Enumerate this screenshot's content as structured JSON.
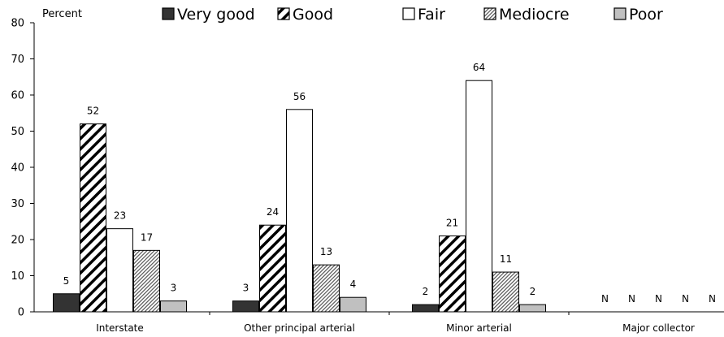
{
  "chart_data": {
    "type": "bar",
    "title": "",
    "xlabel": "",
    "ylabel": "Percent",
    "ylim": [
      0,
      80
    ],
    "yticks": [
      0,
      10,
      20,
      30,
      40,
      50,
      60,
      70,
      80
    ],
    "grid": false,
    "legend_position": "top",
    "categories": [
      "Interstate",
      "Other principal arterial",
      "Minor arterial",
      "Major collector"
    ],
    "series": [
      {
        "name": "Very good",
        "style": "solid-dark",
        "color": "#333333",
        "values": [
          5,
          3,
          2,
          null
        ],
        "labels": [
          "5",
          "3",
          "2",
          "N"
        ]
      },
      {
        "name": "Good",
        "style": "diagonal-bold",
        "color": "#000000",
        "values": [
          52,
          24,
          21,
          null
        ],
        "labels": [
          "52",
          "24",
          "21",
          "N"
        ]
      },
      {
        "name": "Fair",
        "style": "white",
        "color": "#ffffff",
        "values": [
          23,
          56,
          64,
          null
        ],
        "labels": [
          "23",
          "56",
          "64",
          "N"
        ]
      },
      {
        "name": "Mediocre",
        "style": "diagonal-fine",
        "color": "#000000",
        "values": [
          17,
          13,
          11,
          null
        ],
        "labels": [
          "17",
          "13",
          "11",
          "N"
        ]
      },
      {
        "name": "Poor",
        "style": "solid-light",
        "color": "#c0c0c0",
        "values": [
          3,
          4,
          2,
          null
        ],
        "labels": [
          "3",
          "4",
          "2",
          "N"
        ]
      }
    ]
  }
}
